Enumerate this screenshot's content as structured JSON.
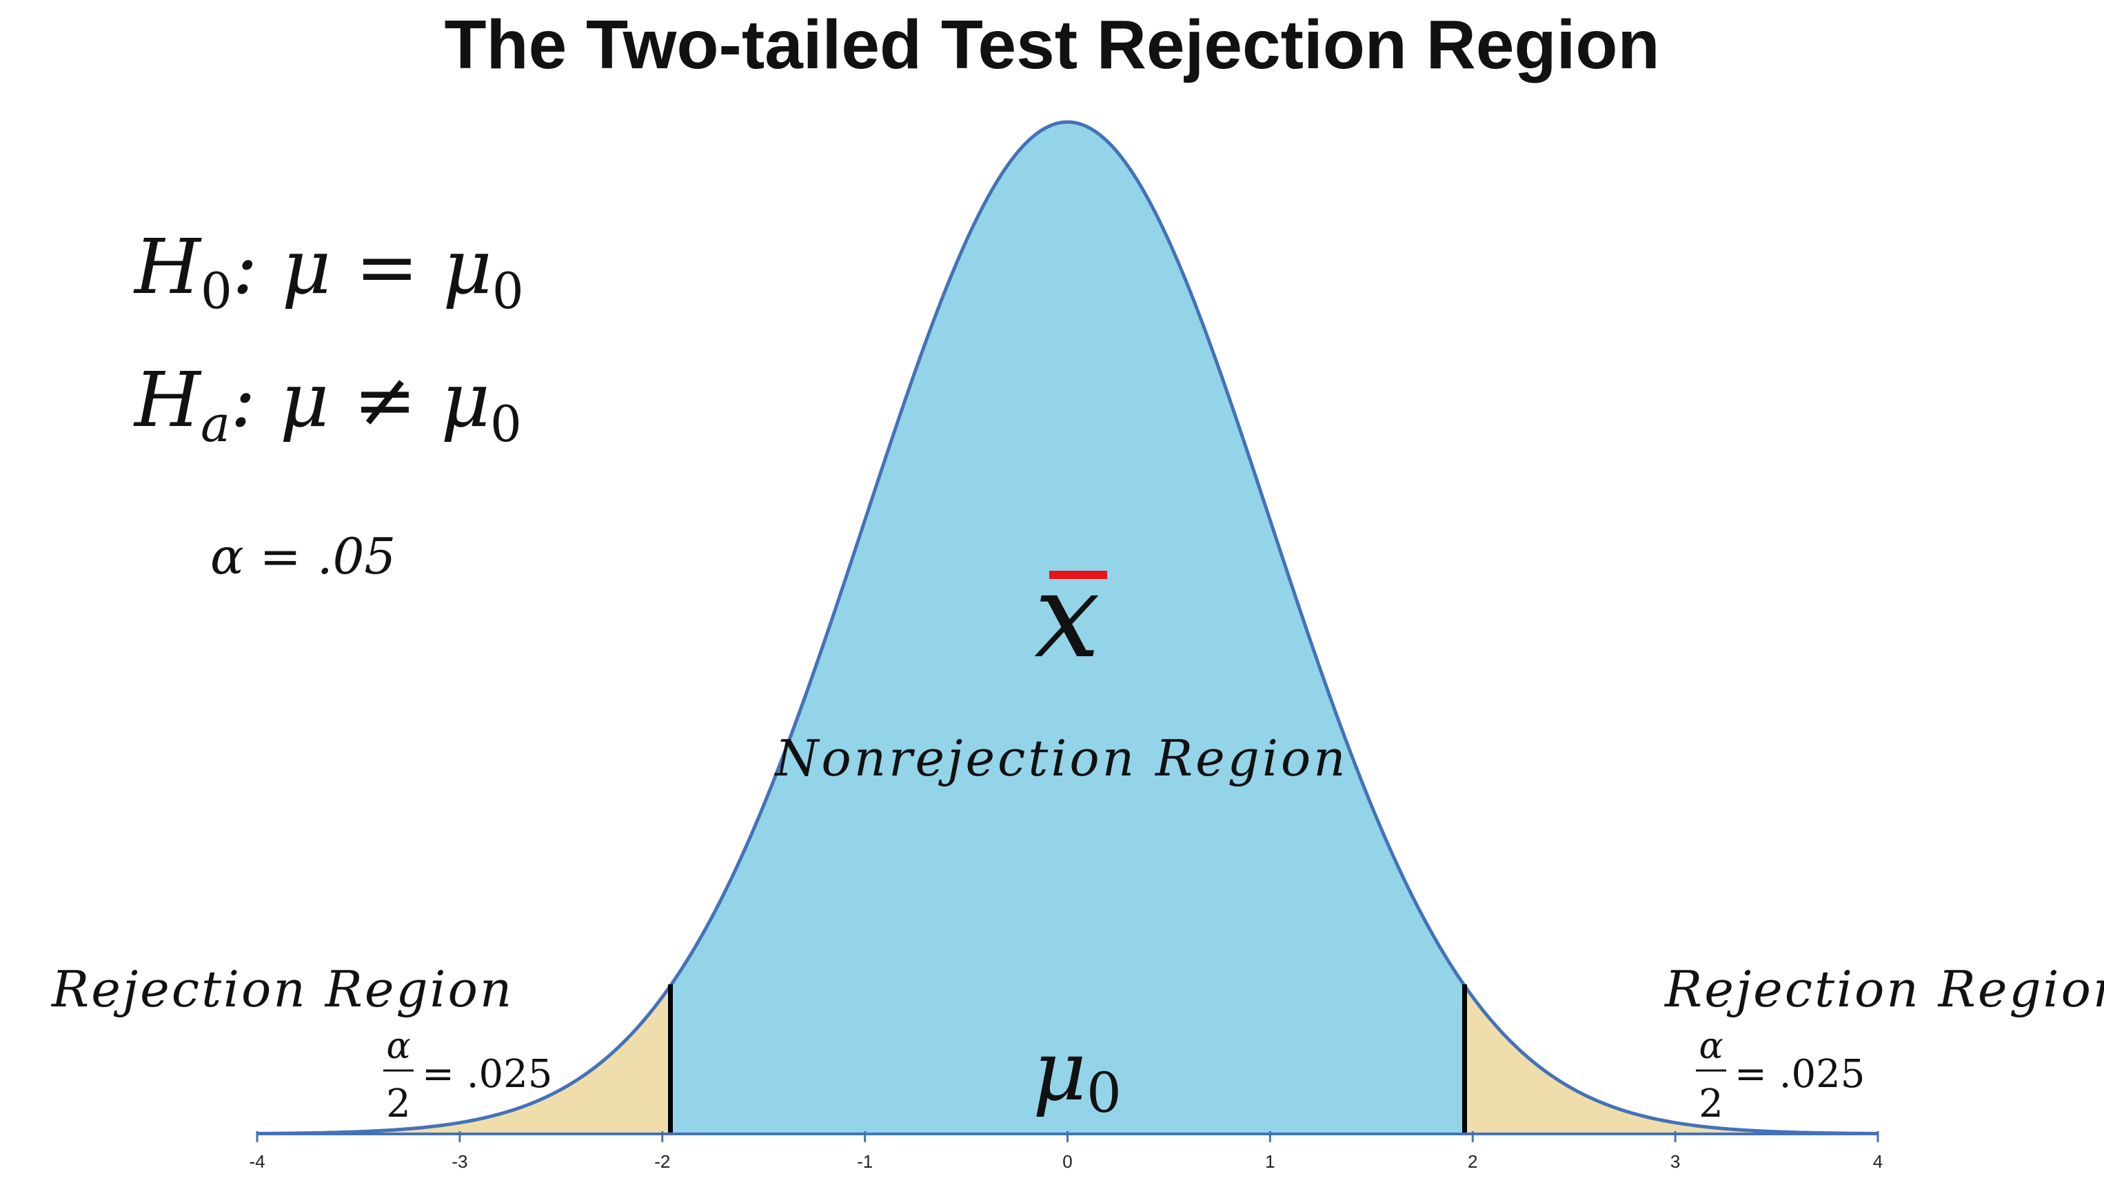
{
  "title": "The Two-tailed Test Rejection Region",
  "hypotheses": {
    "h0": {
      "symbol": "H",
      "sub": "0",
      "rel": ": μ = μ",
      "rel_sub": "0"
    },
    "ha": {
      "symbol": "H",
      "sub": "a",
      "rel": ": μ ≠ μ",
      "rel_sub": "0"
    }
  },
  "alpha_label": "α = .05",
  "nonrejection_label": "Nonrejection Region",
  "xbar_symbol": "x",
  "mu0": {
    "symbol": "μ",
    "sub": "0"
  },
  "rejection_left": {
    "label": "Rejection Region",
    "frac_num": "α",
    "frac_den": "2",
    "value": "= .025"
  },
  "rejection_right": {
    "label": "Rejection Region",
    "frac_num": "α",
    "frac_den": "2",
    "value": "= .025"
  },
  "colors": {
    "nonrejection_fill": "#94d4e8",
    "rejection_fill": "#efdeac",
    "curve": "#4472b8",
    "xbar": "#e8141d",
    "critical_line": "#000000"
  },
  "chart_data": {
    "type": "area",
    "distribution": "standard normal",
    "x_range": [
      -4,
      4
    ],
    "tick_labels": [
      "-4",
      "-3",
      "-2",
      "-1",
      "0",
      "1",
      "2",
      "3",
      "4"
    ],
    "tick_values": [
      -4,
      -3,
      -2,
      -1,
      0,
      1,
      2,
      3,
      4
    ],
    "critical_values": [
      -1.96,
      1.96
    ],
    "mean": 0,
    "xbar_position": 0,
    "legend": "none",
    "grid": false
  }
}
